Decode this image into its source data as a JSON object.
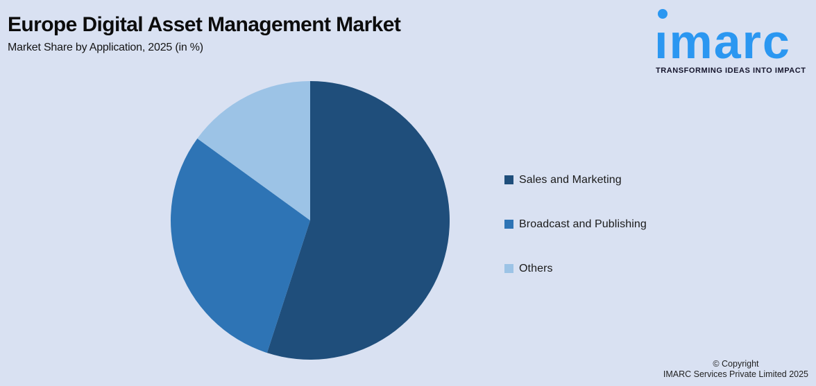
{
  "chart_data": {
    "type": "pie",
    "title": "Europe Digital Asset Management Market",
    "subtitle": "Market Share by Application, 2025 (in %)",
    "start_angle_deg": 0,
    "direction": "clockwise",
    "legend_position": "right",
    "background_color": "#D9E1F2",
    "slices": [
      {
        "label": "Sales and Marketing",
        "value": 55,
        "color": "#1F4E7B"
      },
      {
        "label": "Broadcast and Publishing",
        "value": 30,
        "color": "#2E74B5"
      },
      {
        "label": "Others",
        "value": 15,
        "color": "#9CC3E6"
      }
    ]
  },
  "logo": {
    "wordmark": "imarc",
    "wordmark_display": "ımarc",
    "tagline": "TRANSFORMING IDEAS INTO IMPACT",
    "color": "#2B97F1"
  },
  "footer": {
    "copyright_line1": "© Copyright",
    "copyright_line2": "IMARC Services Private Limited 2025"
  }
}
